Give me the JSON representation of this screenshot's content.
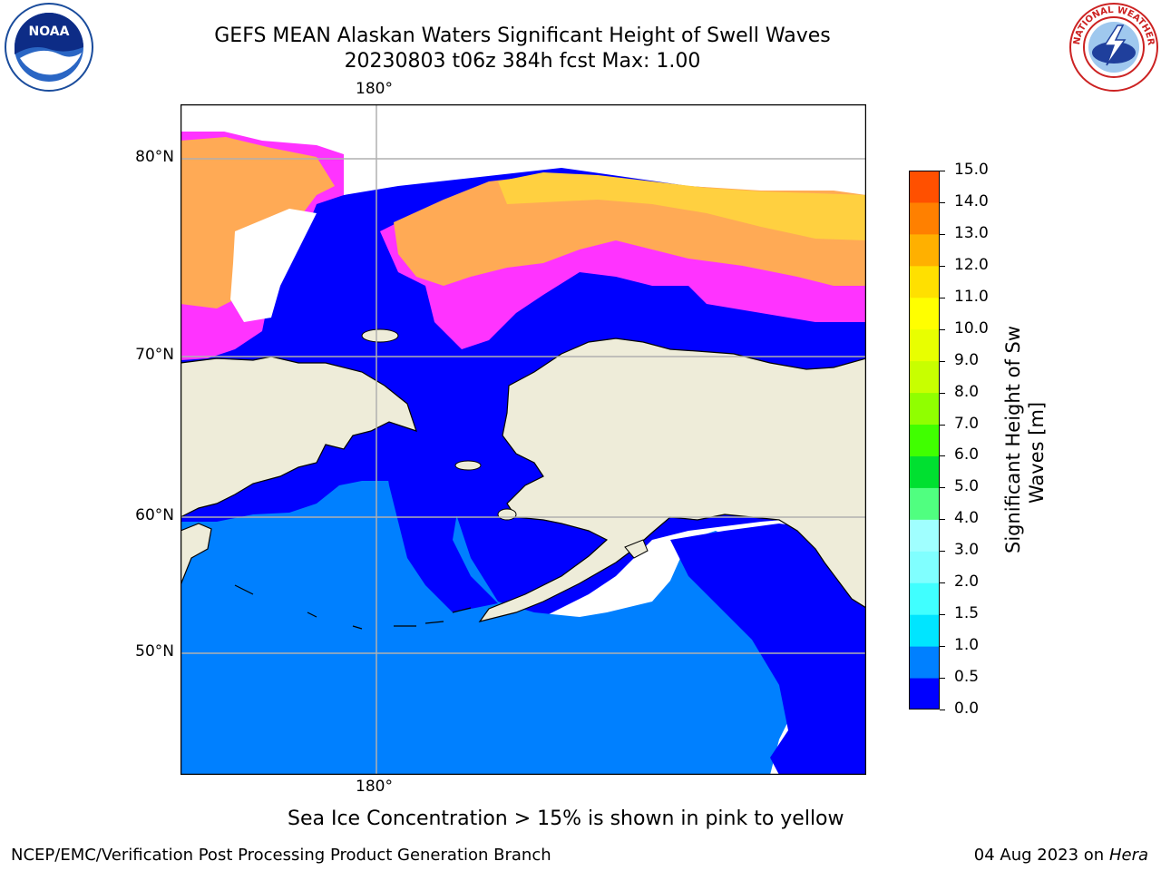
{
  "header": {
    "title_line1": "GEFS MEAN Alaskan Waters Significant Height of Swell Waves",
    "title_line2": "20230803 t06z 384h fcst   Max: 1.00"
  },
  "logos": {
    "left": {
      "icon": "noaa-logo-icon",
      "text": "NOAA"
    },
    "right": {
      "icon": "nws-logo-icon",
      "text": "NATIONAL WEATHER SERVICE"
    }
  },
  "map": {
    "lon_label_top": "180°",
    "lon_label_bottom": "180°",
    "lat_labels": {
      "lat80": "80°N",
      "lat70": "70°N",
      "lat60": "60°N",
      "lat50": "50°N"
    },
    "colors": {
      "ocean_0_05": "#0000ff",
      "ocean_05_10": "#0080ff",
      "land": "#eeecd9",
      "coast": "#000000",
      "ice_pink": "#ff33ff",
      "ice_orange": "#ffaa55",
      "ice_yellow": "#ffd040",
      "no_data": "#ffffff",
      "grid": "#b0b0b0"
    }
  },
  "colorbar": {
    "label_line1": "Significant Height of Swell",
    "label_line2": "Waves [m]",
    "ticks": [
      "15.0",
      "14.0",
      "13.0",
      "12.0",
      "11.0",
      "10.0",
      "9.0",
      "8.0",
      "7.0",
      "6.0",
      "5.0",
      "4.0",
      "3.0",
      "2.0",
      "1.5",
      "1.0",
      "0.5",
      "0.0"
    ],
    "colors": [
      "#0000ff",
      "#0080ff",
      "#00e5ff",
      "#40ffff",
      "#80ffff",
      "#a0ffff",
      "#50ff80",
      "#00e030",
      "#40ff00",
      "#90ff00",
      "#c8ff00",
      "#e8ff00",
      "#ffff00",
      "#ffe000",
      "#ffb000",
      "#ff8000",
      "#ff5000",
      "#ff2000",
      "#ff0000"
    ]
  },
  "notes": {
    "sea_ice": "Sea Ice Concentration > 15% is shown in pink to yellow"
  },
  "footer": {
    "left": "NCEP/EMC/Verification Post Processing Product Generation Branch",
    "right_date": "04 Aug 2023 on",
    "right_host": "Hera"
  }
}
